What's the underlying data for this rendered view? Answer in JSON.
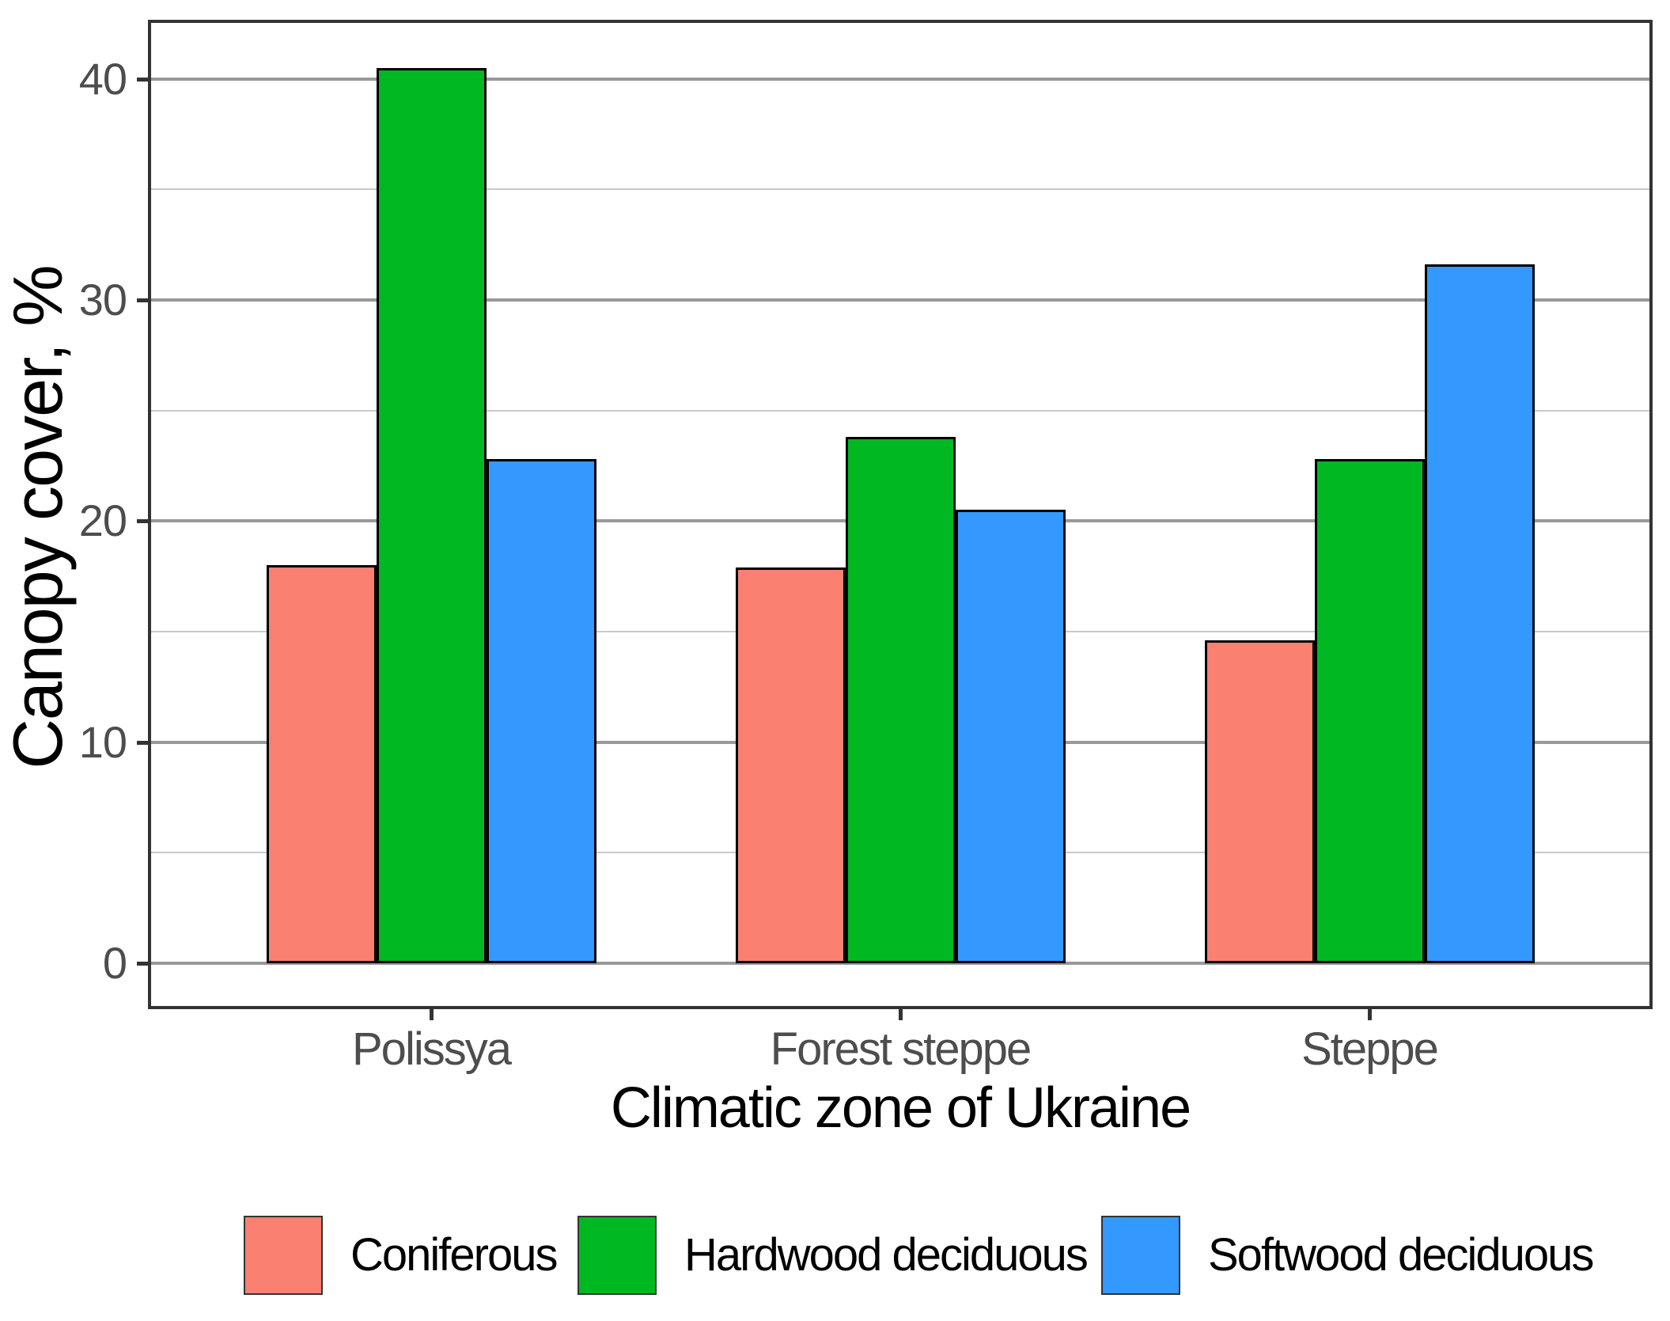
{
  "chart_data": {
    "type": "bar",
    "title": "",
    "categories": [
      "Polissya",
      "Forest steppe",
      "Steppe"
    ],
    "series": [
      {
        "name": "Coniferous",
        "color": "#FA8072",
        "values": [
          18.0,
          17.9,
          14.6
        ]
      },
      {
        "name": "Hardwood deciduous",
        "color": "#00B822",
        "values": [
          40.5,
          23.8,
          22.8
        ]
      },
      {
        "name": "Softwood deciduous",
        "color": "#3399FF",
        "values": [
          22.8,
          20.5,
          31.6
        ]
      }
    ],
    "xlabel": "Climatic zone of Ukraine",
    "ylabel": "Canopy cover, %",
    "ylim": [
      -2.0,
      42.6
    ],
    "y_major_ticks": [
      0,
      10,
      20,
      30,
      40
    ],
    "y_major_tick_labels": [
      "0",
      "10",
      "20",
      "30",
      "40"
    ],
    "y_minor_ticks": [
      5,
      15,
      25,
      35
    ],
    "grid": "horizontal major+minor",
    "legend_position": "bottom",
    "colors": {
      "major_grid": "#999999",
      "minor_grid": "#C9C9C9",
      "panel_border": "#333333",
      "bar_outline": "#000000",
      "tick_label": "#4D4D4D",
      "axis_title": "#000000",
      "background": "#FFFFFF"
    }
  }
}
